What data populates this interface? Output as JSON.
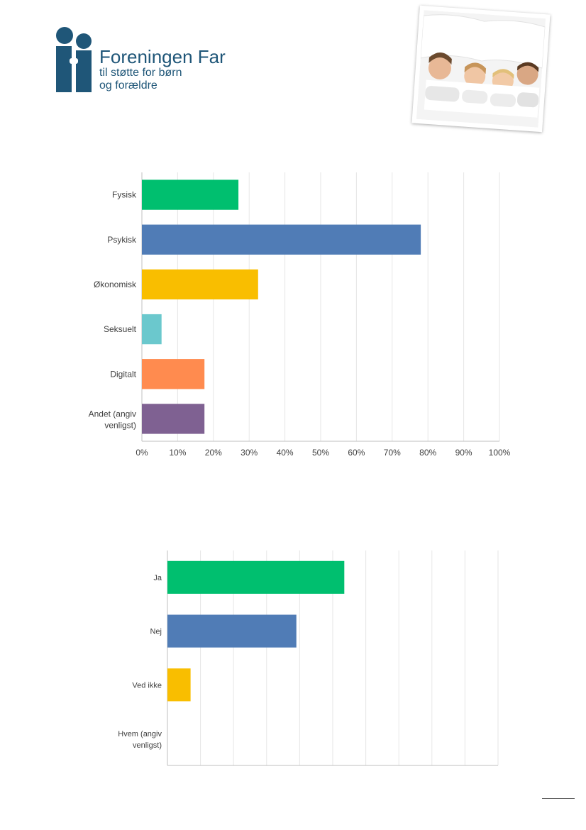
{
  "header": {
    "logo_name": "Foreningen Far",
    "logo_sub1": "til støtte for børn",
    "logo_sub2": "og forældre"
  },
  "colors": {
    "brand": "#1f5678",
    "green": "#00bf6f",
    "blue": "#507cb6",
    "yellow": "#f9be00",
    "teal": "#6bc8cd",
    "orange": "#ff8b4f",
    "purple": "#7f6192",
    "grid": "#e6e6e6",
    "axis": "#bfbfbf"
  },
  "chart_data": [
    {
      "type": "bar",
      "orientation": "horizontal",
      "categories": [
        "Fysisk",
        "Psykisk",
        "Økonomisk",
        "Seksuelt",
        "Digitalt",
        "Andet (angiv venligst)"
      ],
      "values": [
        27,
        78,
        32.5,
        5.5,
        17.5,
        17.5
      ],
      "colors": [
        "#00bf6f",
        "#507cb6",
        "#f9be00",
        "#6bc8cd",
        "#ff8b4f",
        "#7f6192"
      ],
      "x_ticks": [
        "0%",
        "10%",
        "20%",
        "30%",
        "40%",
        "50%",
        "60%",
        "70%",
        "80%",
        "90%",
        "100%"
      ],
      "xlim": [
        0,
        100
      ],
      "grid": true
    },
    {
      "type": "bar",
      "orientation": "horizontal",
      "categories": [
        "Ja",
        "Nej",
        "Ved ikke",
        "Hvem (angiv venligst)"
      ],
      "values": [
        53.5,
        39,
        7,
        0
      ],
      "colors": [
        "#00bf6f",
        "#507cb6",
        "#f9be00",
        "#6bc8cd"
      ],
      "xlim": [
        0,
        100
      ],
      "grid": true
    }
  ]
}
